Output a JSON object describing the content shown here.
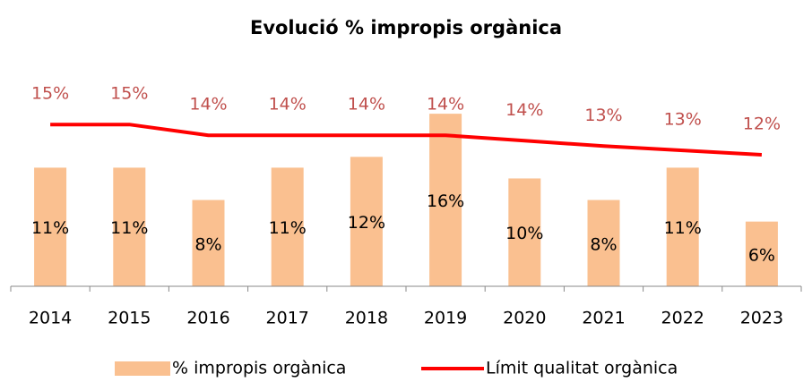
{
  "chart_data": {
    "type": "bar_line",
    "title": "Evolució % impropis orgànica",
    "categories": [
      "2014",
      "2015",
      "2016",
      "2017",
      "2018",
      "2019",
      "2020",
      "2021",
      "2022",
      "2023"
    ],
    "ylim": [
      0,
      18.5
    ],
    "series": [
      {
        "name": "% impropis orgànica",
        "type": "bar",
        "color": "#fac090",
        "values": [
          11,
          11,
          8,
          11,
          12,
          16,
          10,
          8,
          11,
          6
        ],
        "value_labels": [
          "11%",
          "11%",
          "8%",
          "11%",
          "12%",
          "16%",
          "10%",
          "8%",
          "11%",
          "6%"
        ]
      },
      {
        "name": "Límit qualitat orgànica",
        "type": "line",
        "color": "#ff0000",
        "label_color": "#c0504d",
        "values": [
          15,
          15,
          14,
          14,
          14,
          14,
          13.5,
          13,
          12.6,
          12.2
        ],
        "value_labels": [
          "15%",
          "15%",
          "14%",
          "14%",
          "14%",
          "14%",
          "14%",
          "13%",
          "13%",
          "12%"
        ]
      }
    ],
    "legend": "bottom"
  }
}
